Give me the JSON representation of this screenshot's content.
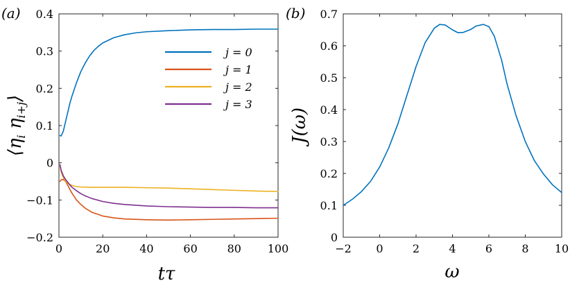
{
  "chart_data": [
    {
      "type": "line",
      "panel_label": "(a)",
      "xlabel": "tτ",
      "ylabel": "⟨η_i η_{i+j}⟩",
      "xlim": [
        0,
        100
      ],
      "ylim": [
        -0.2,
        0.4
      ],
      "xticks": [
        "0",
        "20",
        "40",
        "60",
        "80",
        "100"
      ],
      "yticks": [
        "−0.2",
        "−0.1",
        "0",
        "0.1",
        "0.2",
        "0.3",
        "0.4"
      ],
      "legend_position": "upper-right",
      "series": [
        {
          "name": "j = 0",
          "color": "#0072BD",
          "x": [
            0.5,
            1,
            2,
            3,
            4,
            5,
            6,
            8,
            10,
            12,
            14,
            16,
            18,
            20,
            25,
            30,
            35,
            40,
            50,
            60,
            70,
            80,
            90,
            100
          ],
          "y": [
            0.073,
            0.072,
            0.085,
            0.11,
            0.135,
            0.16,
            0.18,
            0.215,
            0.245,
            0.268,
            0.287,
            0.302,
            0.313,
            0.322,
            0.336,
            0.344,
            0.349,
            0.352,
            0.355,
            0.357,
            0.358,
            0.358,
            0.359,
            0.359
          ]
        },
        {
          "name": "j = 1",
          "color": "#D95319",
          "x": [
            0.5,
            1,
            2,
            3,
            4,
            5,
            6,
            8,
            10,
            12,
            15,
            20,
            25,
            30,
            40,
            50,
            60,
            70,
            80,
            90,
            100
          ],
          "y": [
            -0.05,
            -0.046,
            -0.045,
            -0.05,
            -0.06,
            -0.072,
            -0.082,
            -0.1,
            -0.112,
            -0.122,
            -0.133,
            -0.143,
            -0.148,
            -0.151,
            -0.153,
            -0.154,
            -0.153,
            -0.152,
            -0.151,
            -0.15,
            -0.149
          ]
        },
        {
          "name": "j = 2",
          "color": "#EDB120",
          "x": [
            0.5,
            1,
            2,
            3,
            4,
            5,
            6,
            8,
            10,
            15,
            20,
            30,
            40,
            50,
            60,
            70,
            80,
            90,
            100
          ],
          "y": [
            -0.01,
            -0.025,
            -0.04,
            -0.05,
            -0.055,
            -0.058,
            -0.061,
            -0.064,
            -0.065,
            -0.066,
            -0.066,
            -0.066,
            -0.067,
            -0.068,
            -0.07,
            -0.072,
            -0.074,
            -0.076,
            -0.077
          ]
        },
        {
          "name": "j = 3",
          "color": "#7E2F8E",
          "x": [
            0.5,
            1,
            2,
            3,
            4,
            5,
            6,
            8,
            10,
            12,
            15,
            20,
            25,
            30,
            40,
            50,
            60,
            70,
            80,
            90,
            100
          ],
          "y": [
            -0.005,
            -0.02,
            -0.035,
            -0.045,
            -0.052,
            -0.06,
            -0.066,
            -0.075,
            -0.083,
            -0.089,
            -0.096,
            -0.104,
            -0.109,
            -0.112,
            -0.116,
            -0.118,
            -0.119,
            -0.12,
            -0.12,
            -0.121,
            -0.121
          ]
        }
      ]
    },
    {
      "type": "line",
      "panel_label": "(b)",
      "xlabel": "ω",
      "ylabel": "J(ω)",
      "xlim": [
        -2,
        10
      ],
      "ylim": [
        0,
        0.7
      ],
      "xticks": [
        "−2",
        "0",
        "2",
        "4",
        "6",
        "8",
        "10"
      ],
      "yticks": [
        "0",
        "0.1",
        "0.2",
        "0.3",
        "0.4",
        "0.5",
        "0.6",
        "0.7"
      ],
      "series": [
        {
          "name": "J(ω)",
          "color": "#0072BD",
          "x": [
            -2,
            -1.5,
            -1,
            -0.5,
            0,
            0.5,
            1,
            1.5,
            2,
            2.5,
            3,
            3.3,
            3.6,
            4,
            4.3,
            4.6,
            5,
            5.3,
            5.7,
            6,
            6.3,
            6.7,
            7,
            7.5,
            8,
            8.5,
            9,
            9.5,
            10
          ],
          "y": [
            0.1,
            0.119,
            0.143,
            0.175,
            0.22,
            0.28,
            0.355,
            0.445,
            0.535,
            0.61,
            0.655,
            0.667,
            0.665,
            0.65,
            0.641,
            0.642,
            0.651,
            0.662,
            0.667,
            0.66,
            0.63,
            0.555,
            0.48,
            0.38,
            0.3,
            0.24,
            0.198,
            0.164,
            0.14
          ]
        }
      ]
    }
  ]
}
